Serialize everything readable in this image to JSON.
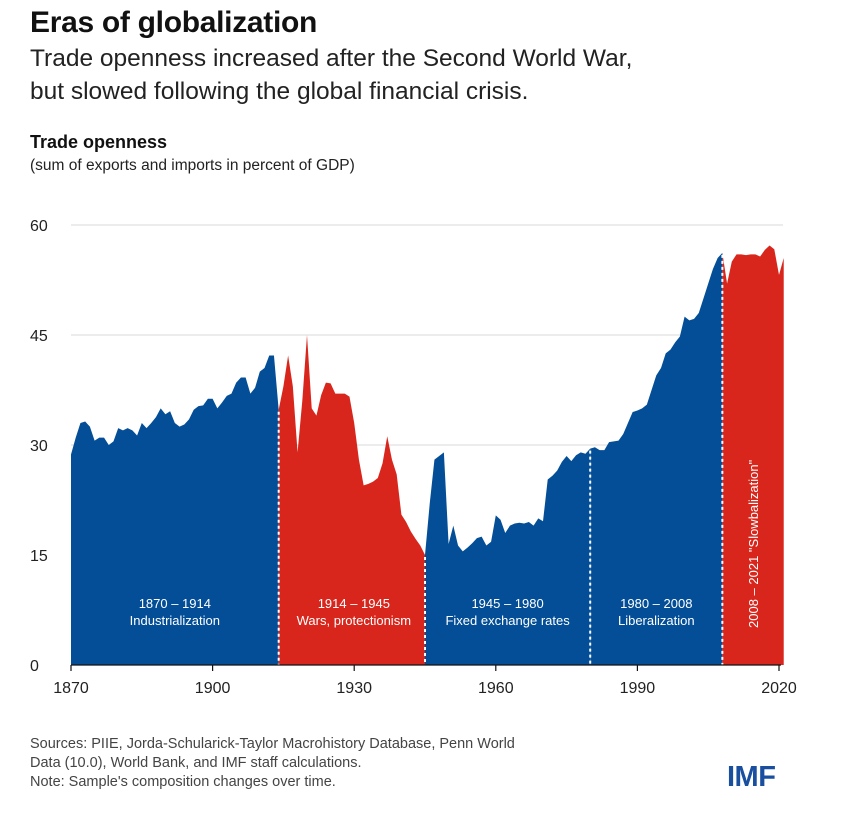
{
  "title": "Eras of globalization",
  "subtitle_lines": [
    "Trade openness increased after the Second World War,",
    "but slowed following the global financial crisis."
  ],
  "logo": "IMF",
  "sources_lines": [
    "Sources: PIIE, Jorda-Schularick-Taylor Macrohistory Database, Penn World",
    "Data (10.0), World Bank, and IMF staff calculations.",
    "Note: Sample's composition changes over time."
  ],
  "colors": {
    "blue": "#034e96",
    "red": "#d9261c"
  },
  "chart_data": {
    "type": "area",
    "title": "Trade openness",
    "subtitle": "(sum of exports and imports in percent of GDP)",
    "xlabel": "",
    "ylabel": "",
    "xlim": [
      1870,
      2021
    ],
    "ylim": [
      0,
      60
    ],
    "yticks": [
      "0",
      "15",
      "30",
      "45",
      "60"
    ],
    "xticks": [
      "1870",
      "1900",
      "1930",
      "1960",
      "1990",
      "2020"
    ],
    "grid": true,
    "x_start": 1870,
    "values": [
      28.7,
      31,
      33,
      33.2,
      32.5,
      30.6,
      31,
      31,
      30,
      30.5,
      32.3,
      32,
      32.3,
      32,
      31.3,
      33,
      32.3,
      33,
      33.8,
      35,
      34.2,
      34.6,
      33,
      32.5,
      32.8,
      33.5,
      34.8,
      35.3,
      35.4,
      36.3,
      36.3,
      35,
      35.8,
      36.7,
      37,
      38.5,
      39.2,
      39.2,
      37,
      37.8,
      40,
      40.5,
      42.2,
      42.2,
      34.8,
      38,
      42.2,
      38,
      29,
      36,
      45,
      35,
      34,
      36.8,
      38.5,
      38.4,
      37,
      37,
      37,
      36.6,
      33,
      28,
      24.5,
      24.7,
      25,
      25.5,
      27.5,
      31.2,
      28,
      26,
      20.5,
      19.5,
      18.2,
      17.2,
      16.3,
      15,
      22,
      28,
      28.5,
      29,
      16.5,
      19,
      16.3,
      15.5,
      16,
      16.6,
      17.3,
      17.5,
      16.3,
      16.8,
      20.4,
      19.8,
      18,
      19,
      19.3,
      19.4,
      19.3,
      19.5,
      19,
      20,
      19.6,
      25.3,
      25.8,
      26.5,
      27.7,
      28.5,
      27.8,
      28.6,
      29,
      28.8,
      29.5,
      29.7,
      29.3,
      29.3,
      30.4,
      30.5,
      30.6,
      31.5,
      33,
      34.5,
      34.7,
      35,
      35.5,
      37.5,
      39.5,
      40.5,
      42.5,
      43,
      44,
      44.8,
      47.5,
      47,
      47.2,
      48,
      50,
      52,
      54,
      55.5,
      56.2,
      52,
      55,
      56,
      56,
      55.9,
      56,
      56,
      55.7,
      56.6,
      57.2,
      56.7,
      53.2,
      55.5
    ],
    "eras": [
      {
        "start": 1870,
        "end": 1914,
        "color": "blue",
        "years": "1870 – 1914",
        "label": "Industrialization"
      },
      {
        "start": 1914,
        "end": 1945,
        "color": "red",
        "years": "1914 – 1945",
        "label": "Wars, protectionism"
      },
      {
        "start": 1945,
        "end": 1980,
        "color": "blue",
        "years": "1945 – 1980",
        "label": "Fixed exchange rates"
      },
      {
        "start": 1980,
        "end": 2008,
        "color": "blue",
        "years": "1980 – 2008",
        "label": "Liberalization"
      },
      {
        "start": 2008,
        "end": 2021,
        "color": "red",
        "years": "2008 – 2021",
        "label": "\"Slowbalization\""
      }
    ],
    "dividers": [
      1914,
      1945,
      1980,
      2008
    ]
  }
}
